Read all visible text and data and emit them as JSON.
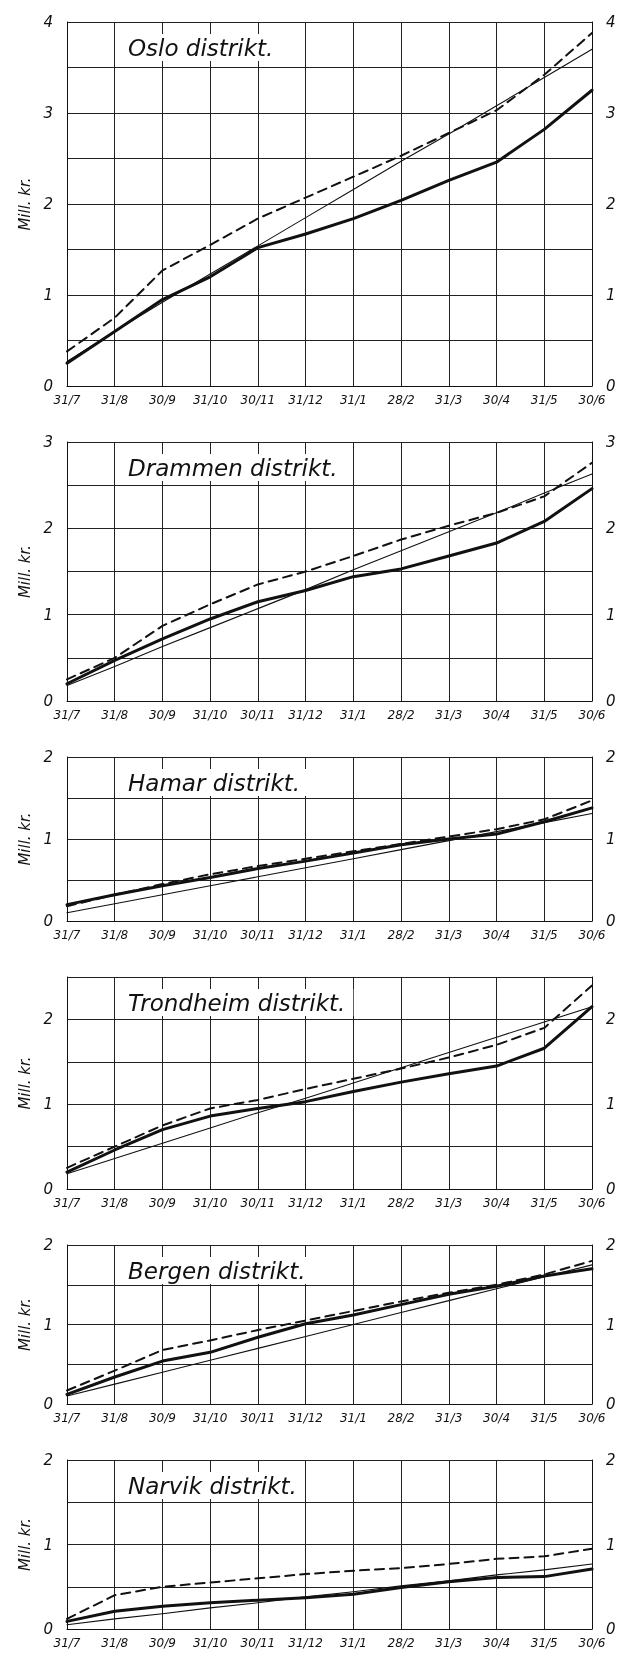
{
  "chart_data": [
    {
      "type": "line",
      "title": "Oslo distrikt.",
      "ylabel": "Mill. kr.",
      "categories": [
        "31/7",
        "31/8",
        "30/9",
        "31/10",
        "30/11",
        "31/12",
        "31/1",
        "28/2",
        "31/3",
        "30/4",
        "31/5",
        "30/6"
      ],
      "ylim": [
        0,
        4
      ],
      "yticks": [
        0,
        {
          "value": 0.5,
          "label": null
        },
        1,
        {
          "value": 1.5,
          "label": null
        },
        2,
        {
          "value": 2.5,
          "label": null
        },
        3,
        {
          "value": 3.5,
          "label": null
        },
        4
      ],
      "y2lim": [
        0,
        4
      ],
      "y2ticks": [
        0,
        {
          "value": 0.5,
          "label": null
        },
        1,
        {
          "value": 1.5,
          "label": null
        },
        2,
        {
          "value": 2.5,
          "label": null
        },
        3,
        {
          "value": 3.5,
          "label": null
        },
        4
      ],
      "grid": true,
      "marker": "none",
      "series": [
        {
          "color": "#111111",
          "line_style": "solid",
          "values": [
            0.25,
            0.6,
            0.95,
            1.2,
            1.52,
            1.67,
            1.84,
            2.04,
            2.26,
            2.46,
            2.82,
            3.25
          ]
        },
        {
          "color": "#111111",
          "line_style": "dashed",
          "values": [
            0.38,
            0.75,
            1.27,
            1.55,
            1.84,
            2.07,
            2.3,
            2.53,
            2.78,
            3.03,
            3.42,
            3.88
          ]
        },
        {
          "color": "#111111",
          "line_style": "solid",
          "values": [
            0.27,
            0.6,
            0.92,
            1.23,
            1.54,
            1.85,
            2.16,
            2.47,
            2.77,
            3.08,
            3.39,
            3.7
          ]
        }
      ]
    },
    {
      "type": "line",
      "title": "Drammen distrikt.",
      "ylabel": "Mill. kr.",
      "categories": [
        "31/7",
        "31/8",
        "30/9",
        "31/10",
        "30/11",
        "31/12",
        "31/1",
        "28/2",
        "31/3",
        "30/4",
        "31/5",
        "30/6"
      ],
      "ylim": [
        0,
        3
      ],
      "yticks": [
        0,
        {
          "value": 0.5,
          "label": null
        },
        1,
        {
          "value": 1.5,
          "label": null
        },
        2,
        {
          "value": 2.5,
          "label": null
        },
        3
      ],
      "y2lim": [
        0,
        3
      ],
      "y2ticks": [
        0,
        {
          "value": 0.5,
          "label": null
        },
        1,
        {
          "value": 1.5,
          "label": null
        },
        2,
        {
          "value": 2.5,
          "label": null
        },
        3
      ],
      "grid": true,
      "marker": "none",
      "series": [
        {
          "color": "#111111",
          "line_style": "solid",
          "values": [
            0.2,
            0.47,
            0.72,
            0.95,
            1.15,
            1.28,
            1.44,
            1.53,
            1.68,
            1.83,
            2.08,
            2.46
          ]
        },
        {
          "color": "#111111",
          "line_style": "dashed",
          "values": [
            0.25,
            0.5,
            0.87,
            1.12,
            1.35,
            1.5,
            1.68,
            1.87,
            2.03,
            2.18,
            2.37,
            2.76
          ]
        },
        {
          "color": "#111111",
          "line_style": "solid",
          "values": [
            0.18,
            0.4,
            0.63,
            0.85,
            1.07,
            1.29,
            1.52,
            1.74,
            1.96,
            2.18,
            2.41,
            2.63
          ]
        }
      ]
    },
    {
      "type": "line",
      "title": "Hamar distrikt.",
      "ylabel": "Mill. kr.",
      "categories": [
        "31/7",
        "31/8",
        "30/9",
        "31/10",
        "30/11",
        "31/12",
        "31/1",
        "28/2",
        "31/3",
        "30/4",
        "31/5",
        "30/6"
      ],
      "ylim": [
        0,
        2
      ],
      "yticks": [
        0,
        {
          "value": 0.5,
          "label": null
        },
        1,
        {
          "value": 1.5,
          "label": null
        },
        2
      ],
      "y2lim": [
        0,
        2
      ],
      "y2ticks": [
        0,
        {
          "value": 0.5,
          "label": null
        },
        1,
        {
          "value": 1.5,
          "label": null
        },
        2
      ],
      "grid": true,
      "marker": "none",
      "series": [
        {
          "color": "#111111",
          "line_style": "solid",
          "values": [
            0.2,
            0.32,
            0.43,
            0.53,
            0.64,
            0.73,
            0.83,
            0.93,
            1.0,
            1.06,
            1.21,
            1.38
          ]
        },
        {
          "color": "#111111",
          "line_style": "dashed",
          "values": [
            0.18,
            0.32,
            0.45,
            0.57,
            0.67,
            0.76,
            0.85,
            0.94,
            1.03,
            1.12,
            1.24,
            1.47
          ]
        },
        {
          "color": "#111111",
          "line_style": "solid",
          "values": [
            0.1,
            0.21,
            0.32,
            0.43,
            0.54,
            0.65,
            0.76,
            0.87,
            0.98,
            1.09,
            1.2,
            1.31
          ]
        }
      ]
    },
    {
      "type": "line",
      "title": "Trondheim distrikt.",
      "ylabel": "Mill. kr.",
      "categories": [
        "31/7",
        "31/8",
        "30/9",
        "31/10",
        "30/11",
        "31/12",
        "31/1",
        "28/2",
        "31/3",
        "30/4",
        "31/5",
        "30/6"
      ],
      "ylim": [
        0,
        2.5
      ],
      "yticks": [
        0,
        {
          "value": 0.5,
          "label": null
        },
        1,
        {
          "value": 1.5,
          "label": null
        },
        2,
        {
          "value": 2.5,
          "label": null
        }
      ],
      "y2lim": [
        0,
        2.5
      ],
      "y2ticks": [
        0,
        {
          "value": 0.5,
          "label": null
        },
        1,
        {
          "value": 1.5,
          "label": null
        },
        2,
        {
          "value": 2.5,
          "label": null
        }
      ],
      "grid": true,
      "marker": "none",
      "series": [
        {
          "color": "#111111",
          "line_style": "solid",
          "values": [
            0.2,
            0.46,
            0.7,
            0.86,
            0.95,
            1.03,
            1.15,
            1.26,
            1.36,
            1.45,
            1.66,
            2.15
          ]
        },
        {
          "color": "#111111",
          "line_style": "dashed",
          "values": [
            0.25,
            0.5,
            0.75,
            0.95,
            1.05,
            1.18,
            1.3,
            1.42,
            1.55,
            1.7,
            1.9,
            2.4
          ]
        },
        {
          "color": "#111111",
          "line_style": "solid",
          "values": [
            0.18,
            0.36,
            0.54,
            0.72,
            0.9,
            1.07,
            1.25,
            1.43,
            1.61,
            1.79,
            1.97,
            2.15
          ]
        }
      ]
    },
    {
      "type": "line",
      "title": "Bergen distrikt.",
      "ylabel": "Mill. kr.",
      "categories": [
        "31/7",
        "31/8",
        "30/9",
        "31/10",
        "30/11",
        "31/12",
        "31/1",
        "28/2",
        "31/3",
        "30/4",
        "31/5",
        "30/6"
      ],
      "ylim": [
        0,
        2
      ],
      "yticks": [
        0,
        {
          "value": 0.5,
          "label": null
        },
        1,
        {
          "value": 1.5,
          "label": null
        },
        2
      ],
      "y2lim": [
        0,
        2
      ],
      "y2ticks": [
        0,
        {
          "value": 0.5,
          "label": null
        },
        1,
        {
          "value": 1.5,
          "label": null
        },
        2
      ],
      "grid": true,
      "marker": "none",
      "series": [
        {
          "color": "#111111",
          "line_style": "solid",
          "values": [
            0.12,
            0.34,
            0.54,
            0.65,
            0.84,
            1.01,
            1.12,
            1.25,
            1.38,
            1.48,
            1.61,
            1.7
          ]
        },
        {
          "color": "#111111",
          "line_style": "dashed",
          "values": [
            0.17,
            0.42,
            0.68,
            0.8,
            0.93,
            1.05,
            1.17,
            1.29,
            1.4,
            1.5,
            1.63,
            1.8
          ]
        },
        {
          "color": "#111111",
          "line_style": "solid",
          "values": [
            0.1,
            0.25,
            0.4,
            0.55,
            0.7,
            0.85,
            1.0,
            1.15,
            1.3,
            1.45,
            1.6,
            1.75
          ]
        }
      ]
    },
    {
      "type": "line",
      "title": "Narvik distrikt.",
      "ylabel": "Mill. kr.",
      "categories": [
        "31/7",
        "31/8",
        "30/9",
        "31/10",
        "30/11",
        "31/12",
        "31/1",
        "28/2",
        "31/3",
        "30/4",
        "31/5",
        "30/6"
      ],
      "ylim": [
        0,
        2
      ],
      "yticks": [
        0,
        {
          "value": 0.5,
          "label": null
        },
        1,
        {
          "value": 1.5,
          "label": null
        },
        2
      ],
      "y2lim": [
        0,
        2
      ],
      "y2ticks": [
        0,
        {
          "value": 0.5,
          "label": null
        },
        1,
        {
          "value": 1.5,
          "label": null
        },
        2
      ],
      "grid": true,
      "marker": "none",
      "series": [
        {
          "color": "#111111",
          "line_style": "solid",
          "values": [
            0.09,
            0.21,
            0.27,
            0.31,
            0.34,
            0.37,
            0.41,
            0.49,
            0.56,
            0.61,
            0.62,
            0.71
          ]
        },
        {
          "color": "#111111",
          "line_style": "dashed",
          "values": [
            0.12,
            0.4,
            0.5,
            0.55,
            0.6,
            0.65,
            0.69,
            0.72,
            0.77,
            0.83,
            0.86,
            0.95
          ]
        },
        {
          "color": "#111111",
          "line_style": "solid",
          "values": [
            0.05,
            0.12,
            0.18,
            0.25,
            0.31,
            0.38,
            0.44,
            0.51,
            0.57,
            0.64,
            0.7,
            0.77
          ]
        }
      ]
    }
  ]
}
